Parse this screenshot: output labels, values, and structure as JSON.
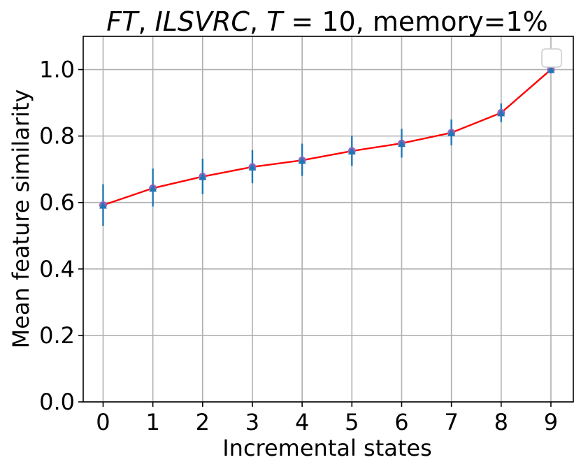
{
  "chart_data": {
    "type": "line",
    "title_parts": [
      {
        "text": "FT",
        "italic": true
      },
      {
        "text": ", ",
        "italic": false
      },
      {
        "text": "ILSVRC",
        "italic": true
      },
      {
        "text": ", ",
        "italic": false
      },
      {
        "text": "T",
        "italic": true
      },
      {
        "text": " = 10, memory=1%",
        "italic": false
      }
    ],
    "xlabel": "Incremental states",
    "ylabel": "Mean feature similarity",
    "x": [
      0,
      1,
      2,
      3,
      4,
      5,
      6,
      7,
      8,
      9
    ],
    "xticks": [
      "0",
      "1",
      "2",
      "3",
      "4",
      "5",
      "6",
      "7",
      "8",
      "9"
    ],
    "yticks": [
      "0.0",
      "0.2",
      "0.4",
      "0.6",
      "0.8",
      "1.0"
    ],
    "xlim": [
      -0.4,
      9.45
    ],
    "ylim": [
      0.0,
      1.1
    ],
    "grid": true,
    "legend": "top-right",
    "series": [
      {
        "values": [
          0.592,
          0.643,
          0.678,
          0.707,
          0.727,
          0.755,
          0.778,
          0.81,
          0.87,
          1.0
        ],
        "err_low": [
          0.53,
          0.588,
          0.625,
          0.658,
          0.68,
          0.71,
          0.735,
          0.772,
          0.842,
          0.995
        ],
        "err_high": [
          0.655,
          0.702,
          0.732,
          0.758,
          0.777,
          0.8,
          0.822,
          0.85,
          0.898,
          1.003
        ],
        "line_color": "#ff0000",
        "marker_color": "#1f77b4",
        "marker_edge_color": "#9467bd"
      }
    ]
  }
}
